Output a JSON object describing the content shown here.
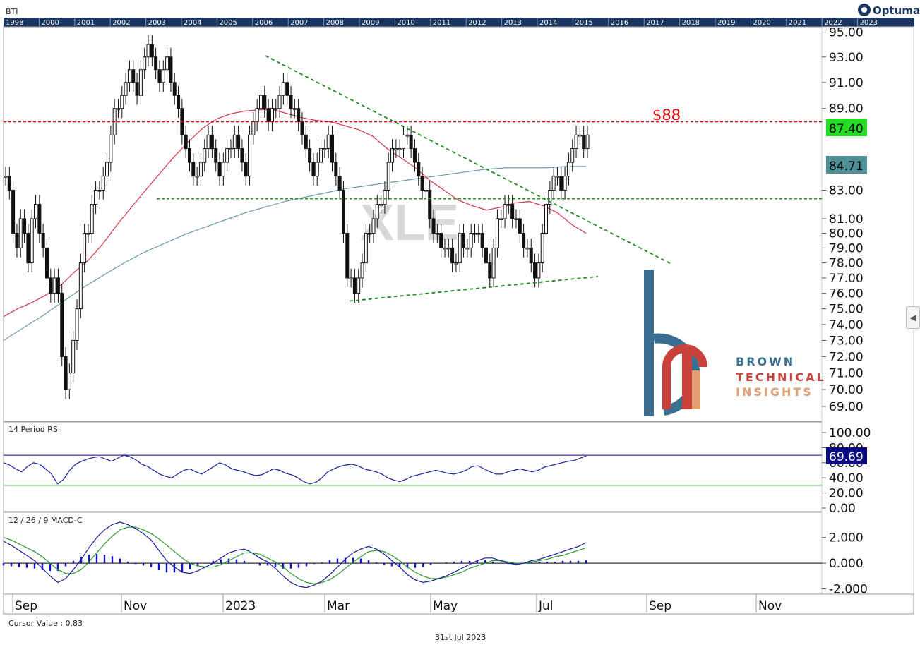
{
  "app": {
    "logo_text": "Optuma",
    "ticker": "BTI"
  },
  "timeline": {
    "years": [
      "1998",
      "2000",
      "2001",
      "2002",
      "2003",
      "2004",
      "2005",
      "2006",
      "2007",
      "2008",
      "2009",
      "2010",
      "2011",
      "2012",
      "2013",
      "2014",
      "2015",
      "2016",
      "2017",
      "2018",
      "2019",
      "2020",
      "2021",
      "2022",
      "2023"
    ]
  },
  "panels": {
    "rsi_title": "14 Period RSI",
    "macd_title": "12 / 26 / 9 MACD-C"
  },
  "watermark": "XLE",
  "brand": {
    "line1": "BROWN",
    "line2": "TECHNICAL",
    "line3": "INSIGHTS"
  },
  "annotations": {
    "resistance_label": "$88"
  },
  "badges": {
    "last_price": "87.40",
    "ma_value": "84.71",
    "rsi_value": "69.69"
  },
  "footer": {
    "cursor": "Cursor Value : 0.83",
    "date": "31st Jul 2023"
  },
  "colors": {
    "ma_short": "#d8344a",
    "ma_long": "#6a9aa8",
    "trend": "#1a8a1a",
    "resistance": "#dd0000",
    "macd_line": "#1a1aa0",
    "signal_line": "#2a9a2a",
    "hist": "#1010d0",
    "badge_price": "#22dd22",
    "badge_ma": "#4d8f95",
    "badge_rsi": "#0a0a80",
    "timeline_bg": "#1a3560"
  },
  "chart_data": [
    {
      "type": "candlestick",
      "title": "",
      "x_tick_labels": [
        "Sep",
        "Nov",
        "2023",
        "Mar",
        "May",
        "Jul",
        "Sep",
        "Nov"
      ],
      "y_tick_labels": [
        "69.00",
        "70.00",
        "71.00",
        "72.00",
        "73.00",
        "74.00",
        "75.00",
        "76.00",
        "77.00",
        "78.00",
        "79.00",
        "80.00",
        "81.00",
        "83.00",
        "89.00",
        "91.00",
        "93.00",
        "95.00"
      ],
      "ylim": [
        68.5,
        95.2
      ],
      "scale": "log",
      "close": [
        84,
        83,
        80,
        79,
        81,
        80,
        78,
        81,
        82,
        80,
        79,
        77,
        76,
        77,
        76,
        72,
        70,
        71,
        73,
        75,
        78,
        80,
        80,
        82,
        83,
        83,
        84,
        85,
        87,
        89,
        89,
        90,
        91,
        92,
        91,
        90,
        92,
        93,
        94,
        93,
        92,
        91,
        92,
        93,
        91,
        90,
        89,
        87,
        86,
        85,
        84,
        84,
        85,
        86,
        87,
        86,
        85,
        84,
        85,
        86,
        86,
        87,
        86,
        85,
        84,
        87,
        88,
        89,
        90,
        89,
        88,
        89,
        89,
        90,
        91,
        90,
        89,
        89,
        88,
        87,
        86,
        85,
        84,
        85,
        86,
        86,
        87,
        85,
        84,
        83,
        80,
        77,
        77,
        76,
        77,
        78,
        80,
        80,
        81,
        82,
        82,
        83,
        85,
        86,
        86,
        86,
        87,
        87,
        86,
        85,
        84,
        83,
        83,
        81,
        80,
        80,
        79,
        79,
        79,
        78,
        78,
        80,
        79,
        79,
        80,
        80,
        80,
        79,
        78,
        77,
        79,
        81,
        81,
        82,
        82,
        81,
        81,
        80,
        79,
        79,
        78,
        77,
        78,
        80,
        82,
        83,
        84,
        84,
        83,
        84,
        85,
        86,
        87,
        87,
        86,
        87
      ],
      "ma_short": [
        74.5,
        75.0,
        75.4,
        75.9,
        76.5,
        77.4,
        78.2,
        79.3,
        80.6,
        81.8,
        83.0,
        84.2,
        85.4,
        86.5,
        87.5,
        88.2,
        88.6,
        88.8,
        88.9,
        88.9,
        88.6,
        88.3,
        88.1,
        88.0,
        87.7,
        87.4,
        86.9,
        86.0,
        85.3,
        84.6,
        83.7,
        83.0,
        82.3,
        81.9,
        81.6,
        81.8,
        82.1,
        82.2,
        81.9,
        81.4,
        80.6,
        80.0
      ],
      "ma_long": [
        73.0,
        73.8,
        74.6,
        75.5,
        76.4,
        77.2,
        78.0,
        78.7,
        79.3,
        79.9,
        80.4,
        80.9,
        81.4,
        81.8,
        82.2,
        82.5,
        82.8,
        83.1,
        83.3,
        83.5,
        83.7,
        83.9,
        84.1,
        84.3,
        84.5,
        84.6,
        84.6,
        84.6,
        84.7,
        84.7
      ],
      "resistance": 88,
      "support": 82.4,
      "last_price": 87.4,
      "ma_value": 84.71
    },
    {
      "type": "line",
      "title": "14 Period RSI",
      "y_tick_labels": [
        "100.00",
        "80.00",
        "60.00",
        "40.00",
        "20.00",
        "0.00"
      ],
      "ylim": [
        0,
        100
      ],
      "upper": 70,
      "lower": 30,
      "values": [
        60,
        57,
        52,
        48,
        55,
        60,
        58,
        52,
        45,
        32,
        38,
        50,
        58,
        62,
        65,
        67,
        68,
        65,
        62,
        66,
        70,
        68,
        64,
        58,
        55,
        50,
        45,
        42,
        40,
        45,
        50,
        52,
        48,
        45,
        50,
        55,
        60,
        57,
        52,
        50,
        48,
        45,
        43,
        44,
        48,
        52,
        50,
        46,
        44,
        40,
        35,
        32,
        34,
        40,
        48,
        52,
        55,
        57,
        58,
        56,
        52,
        50,
        48,
        45,
        40,
        37,
        35,
        38,
        42,
        44,
        46,
        48,
        50,
        48,
        46,
        45,
        47,
        50,
        55,
        56,
        52,
        48,
        45,
        45,
        48,
        50,
        52,
        50,
        48,
        50,
        54,
        56,
        58,
        60,
        62,
        63,
        66,
        69
      ],
      "last": 69.69
    },
    {
      "type": "bar",
      "title": "12 / 26 / 9 MACD-C",
      "y_tick_labels": [
        "2.000",
        "0.000",
        "-2.000"
      ],
      "ylim": [
        -2.3,
        3.3
      ],
      "macd": [
        1.7,
        1.4,
        1.0,
        0.6,
        0.2,
        -0.4,
        -1.0,
        -1.5,
        -1.2,
        -0.5,
        0.3,
        1.2,
        2.0,
        2.6,
        3.0,
        3.2,
        3.0,
        2.7,
        2.3,
        1.8,
        1.0,
        0.2,
        -0.3,
        -0.7,
        -0.8,
        -0.6,
        -0.3,
        0.0,
        0.4,
        0.8,
        1.0,
        1.1,
        0.8,
        0.4,
        0.1,
        -0.4,
        -1.0,
        -1.5,
        -1.8,
        -1.9,
        -1.7,
        -1.4,
        -0.9,
        -0.3,
        0.3,
        0.8,
        1.1,
        1.3,
        1.1,
        0.7,
        0.2,
        -0.3,
        -0.9,
        -1.3,
        -1.5,
        -1.4,
        -1.2,
        -1.0,
        -0.7,
        -0.4,
        -0.1,
        0.2,
        0.4,
        0.4,
        0.2,
        0.0,
        -0.1,
        0.0,
        0.2,
        0.3,
        0.5,
        0.7,
        0.9,
        1.1,
        1.3,
        1.6
      ],
      "signal": [
        2.0,
        1.8,
        1.5,
        1.2,
        0.9,
        0.5,
        0.0,
        -0.5,
        -0.8,
        -0.8,
        -0.5,
        0.1,
        0.8,
        1.5,
        2.1,
        2.6,
        2.8,
        2.8,
        2.6,
        2.3,
        1.9,
        1.4,
        0.9,
        0.4,
        0.0,
        -0.2,
        -0.3,
        -0.3,
        -0.1,
        0.2,
        0.5,
        0.8,
        0.8,
        0.7,
        0.4,
        0.1,
        -0.3,
        -0.8,
        -1.2,
        -1.5,
        -1.6,
        -1.5,
        -1.3,
        -0.9,
        -0.4,
        0.1,
        0.5,
        0.9,
        1.0,
        0.9,
        0.6,
        0.2,
        -0.3,
        -0.7,
        -1.0,
        -1.2,
        -1.2,
        -1.1,
        -0.9,
        -0.7,
        -0.4,
        -0.2,
        0.0,
        0.2,
        0.2,
        0.1,
        0.0,
        0.0,
        0.1,
        0.2,
        0.3,
        0.5,
        0.6,
        0.8,
        1.0,
        1.2
      ]
    }
  ]
}
